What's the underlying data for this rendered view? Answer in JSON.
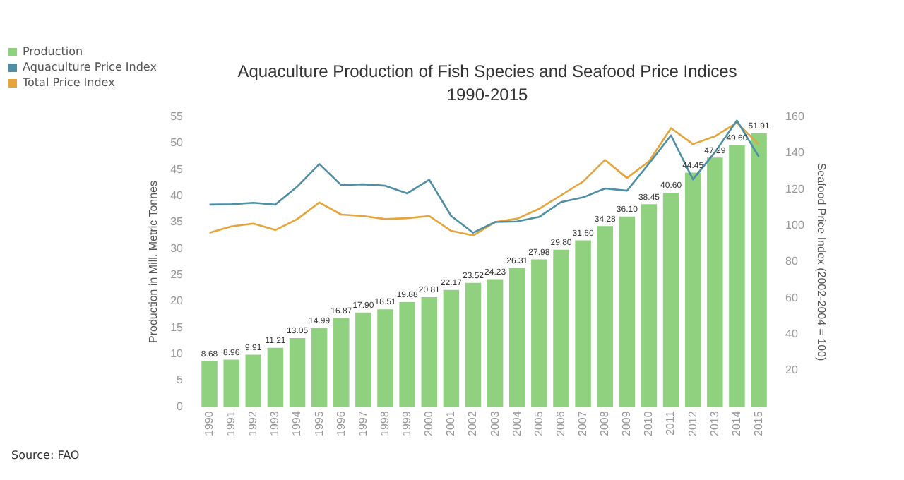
{
  "chart_data": {
    "type": "bar",
    "title": "Aquaculture Production of Fish Species and Seafood Price Indices",
    "subtitle": "1990-2015",
    "ylabel": "Production in Mill. Metric Tonnes",
    "y2label": "Seafood Price Index (2002-2004 = 100)",
    "categories": [
      "1990",
      "1991",
      "1992",
      "1993",
      "1994",
      "1995",
      "1996",
      "1997",
      "1998",
      "1999",
      "2000",
      "2001",
      "2002",
      "2003",
      "2004",
      "2005",
      "2006",
      "2007",
      "2008",
      "2009",
      "2010",
      "2011",
      "2012",
      "2013",
      "2014",
      "2015"
    ],
    "series": [
      {
        "name": "Production",
        "color": "#8fd17f",
        "values": [
          8.68,
          8.96,
          9.91,
          11.21,
          13.05,
          14.99,
          16.87,
          17.9,
          18.51,
          19.88,
          20.81,
          22.17,
          23.52,
          24.23,
          26.31,
          27.98,
          29.8,
          31.6,
          34.28,
          36.1,
          38.45,
          40.6,
          44.45,
          47.29,
          49.6,
          51.91
        ],
        "value_labels": [
          "8.68",
          "8.96",
          "9.91",
          "11.21",
          "13.05",
          "14.99",
          "16.87",
          "17.90",
          "18.51",
          "19.88",
          "20.81",
          "22.17",
          "23.52",
          "24.23",
          "26.31",
          "27.98",
          "29.80",
          "31.60",
          "34.28",
          "36.10",
          "38.45",
          "40.60",
          "44.45",
          "47.29",
          "49.60",
          "51.91"
        ]
      },
      {
        "name": "Aquaculture Price Index",
        "type": "line",
        "axis": "y2",
        "color": "#4f8fa6",
        "values": [
          111.6,
          111.8,
          112.6,
          111.6,
          121.6,
          134,
          122.3,
          122.8,
          122,
          117.8,
          125.3,
          105.3,
          96.1,
          102,
          102.3,
          104.8,
          113,
          115.6,
          120.5,
          119.3,
          134.3,
          149.8,
          125.5,
          140.5,
          158,
          138
        ]
      },
      {
        "name": "Total Price Index",
        "type": "line",
        "axis": "y2",
        "color": "#e6a43a",
        "values": [
          96.1,
          99.6,
          101.1,
          97.6,
          103.6,
          112.8,
          106.1,
          105.3,
          103.6,
          104.1,
          105.3,
          97.1,
          94.6,
          102,
          103.8,
          109.3,
          116.8,
          124.3,
          136.3,
          126.3,
          135.5,
          153.8,
          145,
          149.3,
          156.8,
          144.8
        ]
      }
    ],
    "ylim": [
      0,
      55
    ],
    "yticks": [
      0,
      5,
      10,
      15,
      20,
      25,
      30,
      35,
      40,
      45,
      50,
      55
    ],
    "y2lim": [
      0,
      160
    ],
    "y2ticks": [
      20,
      40,
      60,
      80,
      100,
      120,
      140,
      160
    ],
    "legend": "top left",
    "grid": false,
    "marker": "none",
    "line_style": "solid",
    "annotations": [
      "Source: FAO"
    ]
  }
}
